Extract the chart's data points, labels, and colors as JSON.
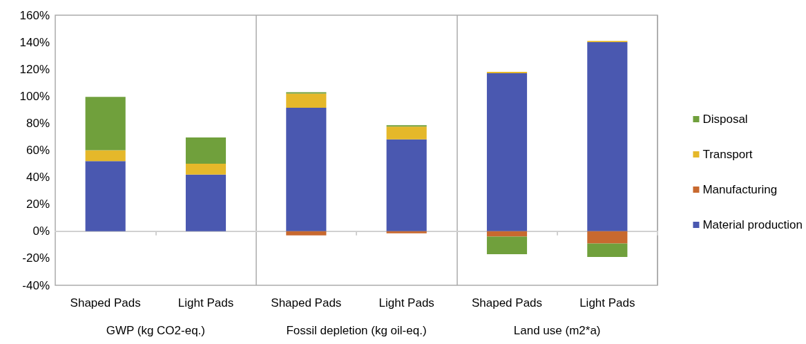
{
  "chart_data": {
    "type": "bar",
    "stacked": true,
    "categories": [
      "Shaped Pads",
      "Light Pads",
      "Shaped Pads",
      "Light Pads",
      "Shaped Pads",
      "Light Pads"
    ],
    "annotations": [
      "GWP (kg CO2-eq.)",
      "Fossil depletion (kg oil-eq.)",
      "Land use (m2*a)"
    ],
    "series": [
      {
        "name": "Material production",
        "color": "#4a58b0",
        "values": [
          52,
          42,
          91.5,
          68,
          117,
          140
        ]
      },
      {
        "name": "Manufacturing",
        "color": "#c8692f",
        "values": [
          0,
          0,
          -3,
          -1.5,
          -4,
          -9
        ]
      },
      {
        "name": "Transport",
        "color": "#e5b82a",
        "values": [
          8,
          8,
          10.5,
          9.5,
          1,
          1
        ]
      },
      {
        "name": "Disposal",
        "color": "#70a03c",
        "values": [
          39.5,
          19.5,
          1,
          1,
          -13,
          -10
        ]
      }
    ],
    "ylim": [
      -40,
      160
    ],
    "yticks": [
      {
        "value": -40,
        "label": "-40%"
      },
      {
        "value": -20,
        "label": "-20%"
      },
      {
        "value": 0,
        "label": "0%"
      },
      {
        "value": 20,
        "label": "20%"
      },
      {
        "value": 40,
        "label": "40%"
      },
      {
        "value": 60,
        "label": "60%"
      },
      {
        "value": 80,
        "label": "80%"
      },
      {
        "value": 100,
        "label": "100%"
      },
      {
        "value": 120,
        "label": "120%"
      },
      {
        "value": 140,
        "label": "140%"
      },
      {
        "value": 160,
        "label": "160%"
      }
    ],
    "grid": false,
    "legend": "right"
  }
}
